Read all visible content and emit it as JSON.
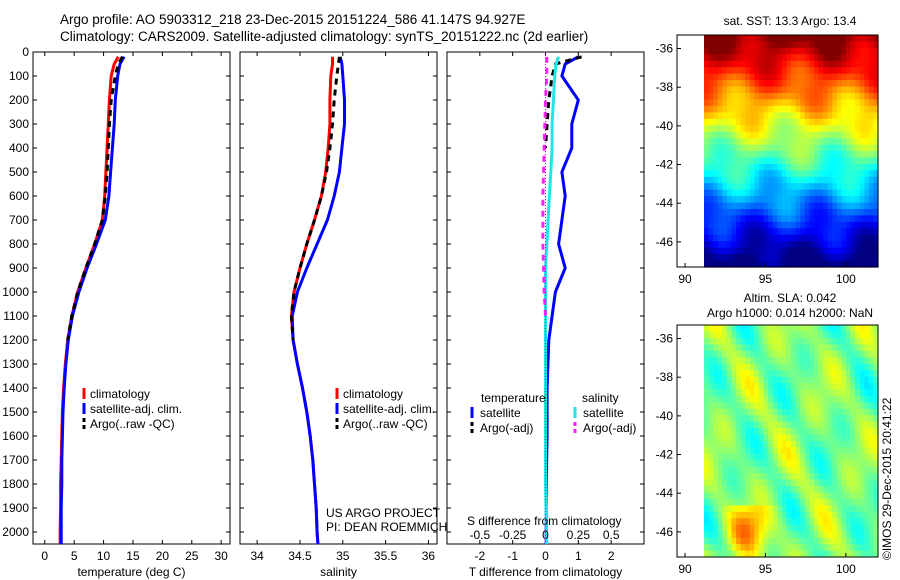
{
  "header": {
    "line1": "Argo profile: AO 5903312_218 23-Dec-2015 20151224_586 41.147S 94.927E",
    "line2": "Climatology: CARS2009. Satellite-adjusted climatology: synTS_20151222.nc (2d earlier)"
  },
  "colors": {
    "climatology": "#ff0000",
    "satellite": "#0000ff",
    "argo": "#000000",
    "salinity_satellite": "#22e6e6",
    "salinity_argo": "#ff22ff"
  },
  "depth_axis": {
    "ticks": [
      0,
      100,
      200,
      300,
      400,
      500,
      600,
      700,
      800,
      900,
      1000,
      1100,
      1200,
      1300,
      1400,
      1500,
      1600,
      1700,
      1800,
      1900,
      2000
    ],
    "ylim": [
      0,
      2050
    ],
    "inverted": true
  },
  "chart_data": [
    {
      "type": "line",
      "xlabel": "temperature (deg C)",
      "xticks": [
        0,
        5,
        10,
        15,
        20,
        25,
        30
      ],
      "xlim": [
        -2,
        31.5
      ],
      "legend": [
        "climatology",
        "satellite-adj. clim.",
        "Argo(..raw -QC)"
      ],
      "series": [
        {
          "name": "climatology",
          "style": "solid",
          "color_key": "climatology",
          "points": [
            [
              12.5,
              20
            ],
            [
              11.8,
              50
            ],
            [
              11.3,
              100
            ],
            [
              11.0,
              200
            ],
            [
              10.8,
              300
            ],
            [
              10.6,
              400
            ],
            [
              10.4,
              500
            ],
            [
              10.2,
              600
            ],
            [
              9.8,
              700
            ],
            [
              8.5,
              800
            ],
            [
              7.0,
              900
            ],
            [
              5.6,
              1000
            ],
            [
              4.6,
              1100
            ],
            [
              3.9,
              1200
            ],
            [
              3.5,
              1300
            ],
            [
              3.2,
              1400
            ],
            [
              3.0,
              1500
            ],
            [
              2.9,
              1600
            ],
            [
              2.8,
              1700
            ],
            [
              2.7,
              1800
            ],
            [
              2.7,
              1900
            ],
            [
              2.6,
              2000
            ],
            [
              2.6,
              2050
            ]
          ]
        },
        {
          "name": "satellite-adj. clim.",
          "style": "solid",
          "color_key": "satellite",
          "points": [
            [
              13.5,
              20
            ],
            [
              12.8,
              50
            ],
            [
              12.4,
              100
            ],
            [
              12.0,
              200
            ],
            [
              11.8,
              300
            ],
            [
              11.5,
              400
            ],
            [
              11.2,
              500
            ],
            [
              10.9,
              600
            ],
            [
              10.3,
              700
            ],
            [
              8.8,
              800
            ],
            [
              7.2,
              900
            ],
            [
              5.8,
              1000
            ],
            [
              4.7,
              1100
            ],
            [
              4.0,
              1200
            ],
            [
              3.6,
              1300
            ],
            [
              3.3,
              1400
            ],
            [
              3.1,
              1500
            ],
            [
              3.0,
              1600
            ],
            [
              2.9,
              1700
            ],
            [
              2.9,
              1800
            ],
            [
              2.8,
              1900
            ],
            [
              2.8,
              2000
            ],
            [
              2.8,
              2050
            ]
          ]
        },
        {
          "name": "Argo(..raw -QC)",
          "style": "dashed",
          "color_key": "argo",
          "points": [
            [
              13.2,
              20
            ],
            [
              12.5,
              50
            ],
            [
              12.0,
              100
            ],
            [
              11.3,
              200
            ],
            [
              11.0,
              300
            ],
            [
              10.8,
              400
            ],
            [
              10.6,
              500
            ],
            [
              10.3,
              600
            ],
            [
              9.8,
              700
            ],
            [
              8.5,
              800
            ],
            [
              7.0,
              900
            ],
            [
              5.6,
              1000
            ],
            [
              4.6,
              1100
            ],
            [
              3.9,
              1200
            ]
          ]
        }
      ]
    },
    {
      "type": "line",
      "xlabel": "salinity",
      "xticks": [
        34,
        34.5,
        35,
        35.5,
        36
      ],
      "xlim": [
        33.8,
        36.1
      ],
      "legend": [
        "climatology",
        "satellite-adj. clim.",
        "Argo(..raw -QC)"
      ],
      "footer": [
        "US ARGO PROJECT",
        "PI: DEAN ROEMMICH"
      ],
      "series": [
        {
          "name": "climatology",
          "style": "solid",
          "color_key": "climatology",
          "points": [
            [
              34.88,
              20
            ],
            [
              34.88,
              50
            ],
            [
              34.86,
              100
            ],
            [
              34.85,
              200
            ],
            [
              34.85,
              300
            ],
            [
              34.83,
              400
            ],
            [
              34.8,
              500
            ],
            [
              34.75,
              600
            ],
            [
              34.67,
              700
            ],
            [
              34.58,
              800
            ],
            [
              34.5,
              900
            ],
            [
              34.43,
              1000
            ],
            [
              34.4,
              1100
            ],
            [
              34.42,
              1200
            ],
            [
              34.47,
              1300
            ],
            [
              34.53,
              1400
            ],
            [
              34.58,
              1500
            ],
            [
              34.62,
              1600
            ],
            [
              34.65,
              1700
            ],
            [
              34.67,
              1800
            ],
            [
              34.69,
              1900
            ],
            [
              34.7,
              2000
            ],
            [
              34.71,
              2050
            ]
          ]
        },
        {
          "name": "satellite-adj. clim.",
          "style": "solid",
          "color_key": "satellite",
          "points": [
            [
              34.97,
              20
            ],
            [
              34.99,
              50
            ],
            [
              35.0,
              100
            ],
            [
              35.02,
              200
            ],
            [
              35.02,
              300
            ],
            [
              34.99,
              400
            ],
            [
              34.96,
              500
            ],
            [
              34.9,
              600
            ],
            [
              34.82,
              700
            ],
            [
              34.7,
              800
            ],
            [
              34.58,
              900
            ],
            [
              34.47,
              1000
            ],
            [
              34.41,
              1100
            ],
            [
              34.42,
              1200
            ],
            [
              34.47,
              1300
            ],
            [
              34.53,
              1400
            ],
            [
              34.58,
              1500
            ],
            [
              34.62,
              1600
            ],
            [
              34.65,
              1700
            ],
            [
              34.67,
              1800
            ],
            [
              34.69,
              1900
            ],
            [
              34.7,
              2000
            ],
            [
              34.71,
              2050
            ]
          ]
        },
        {
          "name": "Argo(..raw -QC)",
          "style": "dashed",
          "color_key": "argo",
          "points": [
            [
              34.96,
              20
            ],
            [
              34.95,
              50
            ],
            [
              34.93,
              100
            ],
            [
              34.9,
              200
            ],
            [
              34.88,
              300
            ],
            [
              34.85,
              400
            ],
            [
              34.81,
              500
            ],
            [
              34.75,
              600
            ],
            [
              34.67,
              700
            ],
            [
              34.58,
              800
            ],
            [
              34.5,
              900
            ],
            [
              34.43,
              1000
            ],
            [
              34.4,
              1100
            ],
            [
              34.42,
              1200
            ]
          ]
        }
      ]
    },
    {
      "type": "line",
      "xlabel": "T difference from climatology",
      "xticks": [
        -2,
        -1,
        0,
        1,
        2
      ],
      "xlim": [
        -3,
        3
      ],
      "top_label": "S difference from climatology",
      "top_ticks": [
        {
          "value": -0.5,
          "label": "-0.5"
        },
        {
          "value": -0.25,
          "label": "-0.25"
        },
        {
          "value": 0,
          "label": "0"
        },
        {
          "value": 0.25,
          "label": "0.25"
        },
        {
          "value": 0.5,
          "label": "0.5"
        }
      ],
      "top_scale": 0.25,
      "legend_headers": [
        "temperature",
        "salinity"
      ],
      "legend_left": [
        "satellite",
        "Argo(-adj)"
      ],
      "legend_right": [
        "satellite",
        "Argo(-adj)"
      ],
      "series": [
        {
          "name": "T satellite",
          "style": "solid",
          "color_key": "satellite",
          "axis": "T",
          "points": [
            [
              1.0,
              20
            ],
            [
              0.6,
              50
            ],
            [
              0.5,
              100
            ],
            [
              1.0,
              200
            ],
            [
              0.8,
              300
            ],
            [
              0.8,
              400
            ],
            [
              0.5,
              500
            ],
            [
              0.6,
              600
            ],
            [
              0.5,
              700
            ],
            [
              0.4,
              800
            ],
            [
              0.6,
              900
            ],
            [
              0.3,
              1000
            ],
            [
              0.2,
              1100
            ],
            [
              0.1,
              1200
            ],
            [
              0.05,
              1400
            ],
            [
              0.05,
              1600
            ],
            [
              0.02,
              1800
            ],
            [
              0.02,
              2000
            ],
            [
              0.02,
              2050
            ]
          ]
        },
        {
          "name": "T Argo(-adj)",
          "style": "dashed",
          "color_key": "argo",
          "axis": "T",
          "points": [
            [
              1.1,
              20
            ],
            [
              0.3,
              50
            ],
            [
              0.2,
              100
            ],
            [
              0.1,
              200
            ],
            [
              0.05,
              300
            ],
            [
              0.0,
              400
            ]
          ]
        },
        {
          "name": "S satellite",
          "style": "solid",
          "color_key": "salinity_satellite",
          "axis": "S",
          "points": [
            [
              0.1,
              20
            ],
            [
              0.08,
              50
            ],
            [
              0.07,
              100
            ],
            [
              0.06,
              200
            ],
            [
              0.05,
              300
            ],
            [
              0.05,
              400
            ],
            [
              0.04,
              500
            ],
            [
              0.03,
              600
            ],
            [
              0.02,
              700
            ],
            [
              0.01,
              800
            ],
            [
              0.0,
              900
            ],
            [
              0.0,
              1000
            ],
            [
              0.0,
              1100
            ],
            [
              0.0,
              1500
            ],
            [
              0.0,
              1800
            ],
            [
              0.01,
              2050
            ]
          ]
        },
        {
          "name": "S Argo(-adj)",
          "style": "dashed",
          "color_key": "salinity_argo",
          "axis": "S",
          "points": [
            [
              0.01,
              20
            ],
            [
              0.01,
              100
            ],
            [
              0.0,
              200
            ],
            [
              -0.01,
              400
            ],
            [
              -0.02,
              600
            ],
            [
              -0.02,
              800
            ],
            [
              -0.01,
              1000
            ],
            [
              0.0,
              1100
            ]
          ]
        }
      ]
    }
  ],
  "maps": {
    "top": {
      "title": "sat. SST: 13.3 Argo: 13.4",
      "yticks": [
        -36,
        -38,
        -40,
        -42,
        -44,
        -46
      ],
      "xticks": [
        90,
        95,
        100
      ],
      "lon_range": [
        89.5,
        102
      ],
      "lat_range": [
        -35.3,
        -47.3
      ],
      "type": "heatmap"
    },
    "bottom": {
      "title_line1": "Altim. SLA: 0.042",
      "title_line2": "Argo h1000: 0.014 h2000: NaN",
      "yticks": [
        -36,
        -38,
        -40,
        -42,
        -44,
        -46
      ],
      "xticks": [
        90,
        95,
        100
      ],
      "type": "heatmap"
    },
    "credit": "©IMOS 29-Dec-2015 20:41:22"
  }
}
